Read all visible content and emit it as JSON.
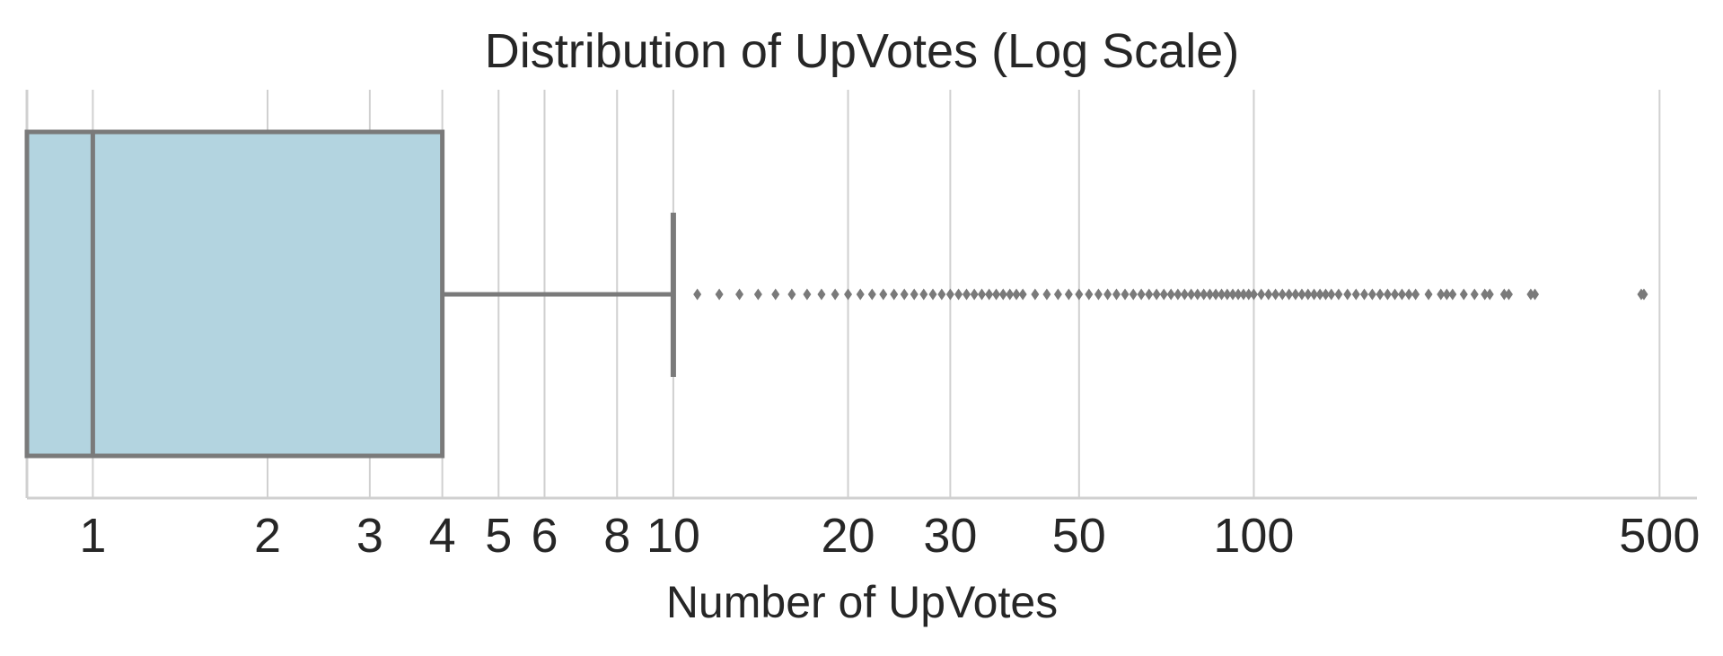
{
  "chart_data": {
    "type": "boxplot",
    "title": "Distribution of UpVotes (Log Scale)",
    "xlabel": "Number of UpVotes",
    "xscale": "log",
    "xlim": [
      0.77,
      580
    ],
    "grid": true,
    "box_color": "#b3d4e0",
    "line_color": "#7a7a7a",
    "grid_color": "#d0d0d0",
    "tick_values": [
      1,
      2,
      3,
      4,
      5,
      6,
      8,
      10,
      20,
      30,
      50,
      100,
      500
    ],
    "tick_labels": [
      "1",
      "2",
      "3",
      "4",
      "5",
      "6",
      "8",
      "10",
      "20",
      "30",
      "50",
      "100",
      "500"
    ],
    "stats": {
      "min": 0,
      "q1": 0,
      "median": 1,
      "q3": 4,
      "whisker_high": 10
    },
    "outliers": [
      11,
      12,
      13,
      14,
      15,
      16,
      17,
      18,
      19,
      20,
      21,
      22,
      23,
      24,
      25,
      26,
      27,
      28,
      29,
      30,
      31,
      32,
      33,
      34,
      35,
      36,
      37,
      38,
      39,
      40,
      42,
      44,
      46,
      48,
      50,
      52,
      54,
      56,
      58,
      60,
      62,
      64,
      66,
      68,
      70,
      72,
      74,
      76,
      78,
      80,
      82,
      84,
      86,
      88,
      90,
      92,
      94,
      96,
      98,
      100,
      103,
      106,
      109,
      112,
      115,
      118,
      121,
      124,
      127,
      130,
      133,
      136,
      140,
      145,
      150,
      155,
      160,
      165,
      170,
      175,
      180,
      185,
      190,
      200,
      210,
      215,
      220,
      230,
      240,
      250,
      255,
      270,
      275,
      300,
      305,
      465,
      470
    ]
  }
}
